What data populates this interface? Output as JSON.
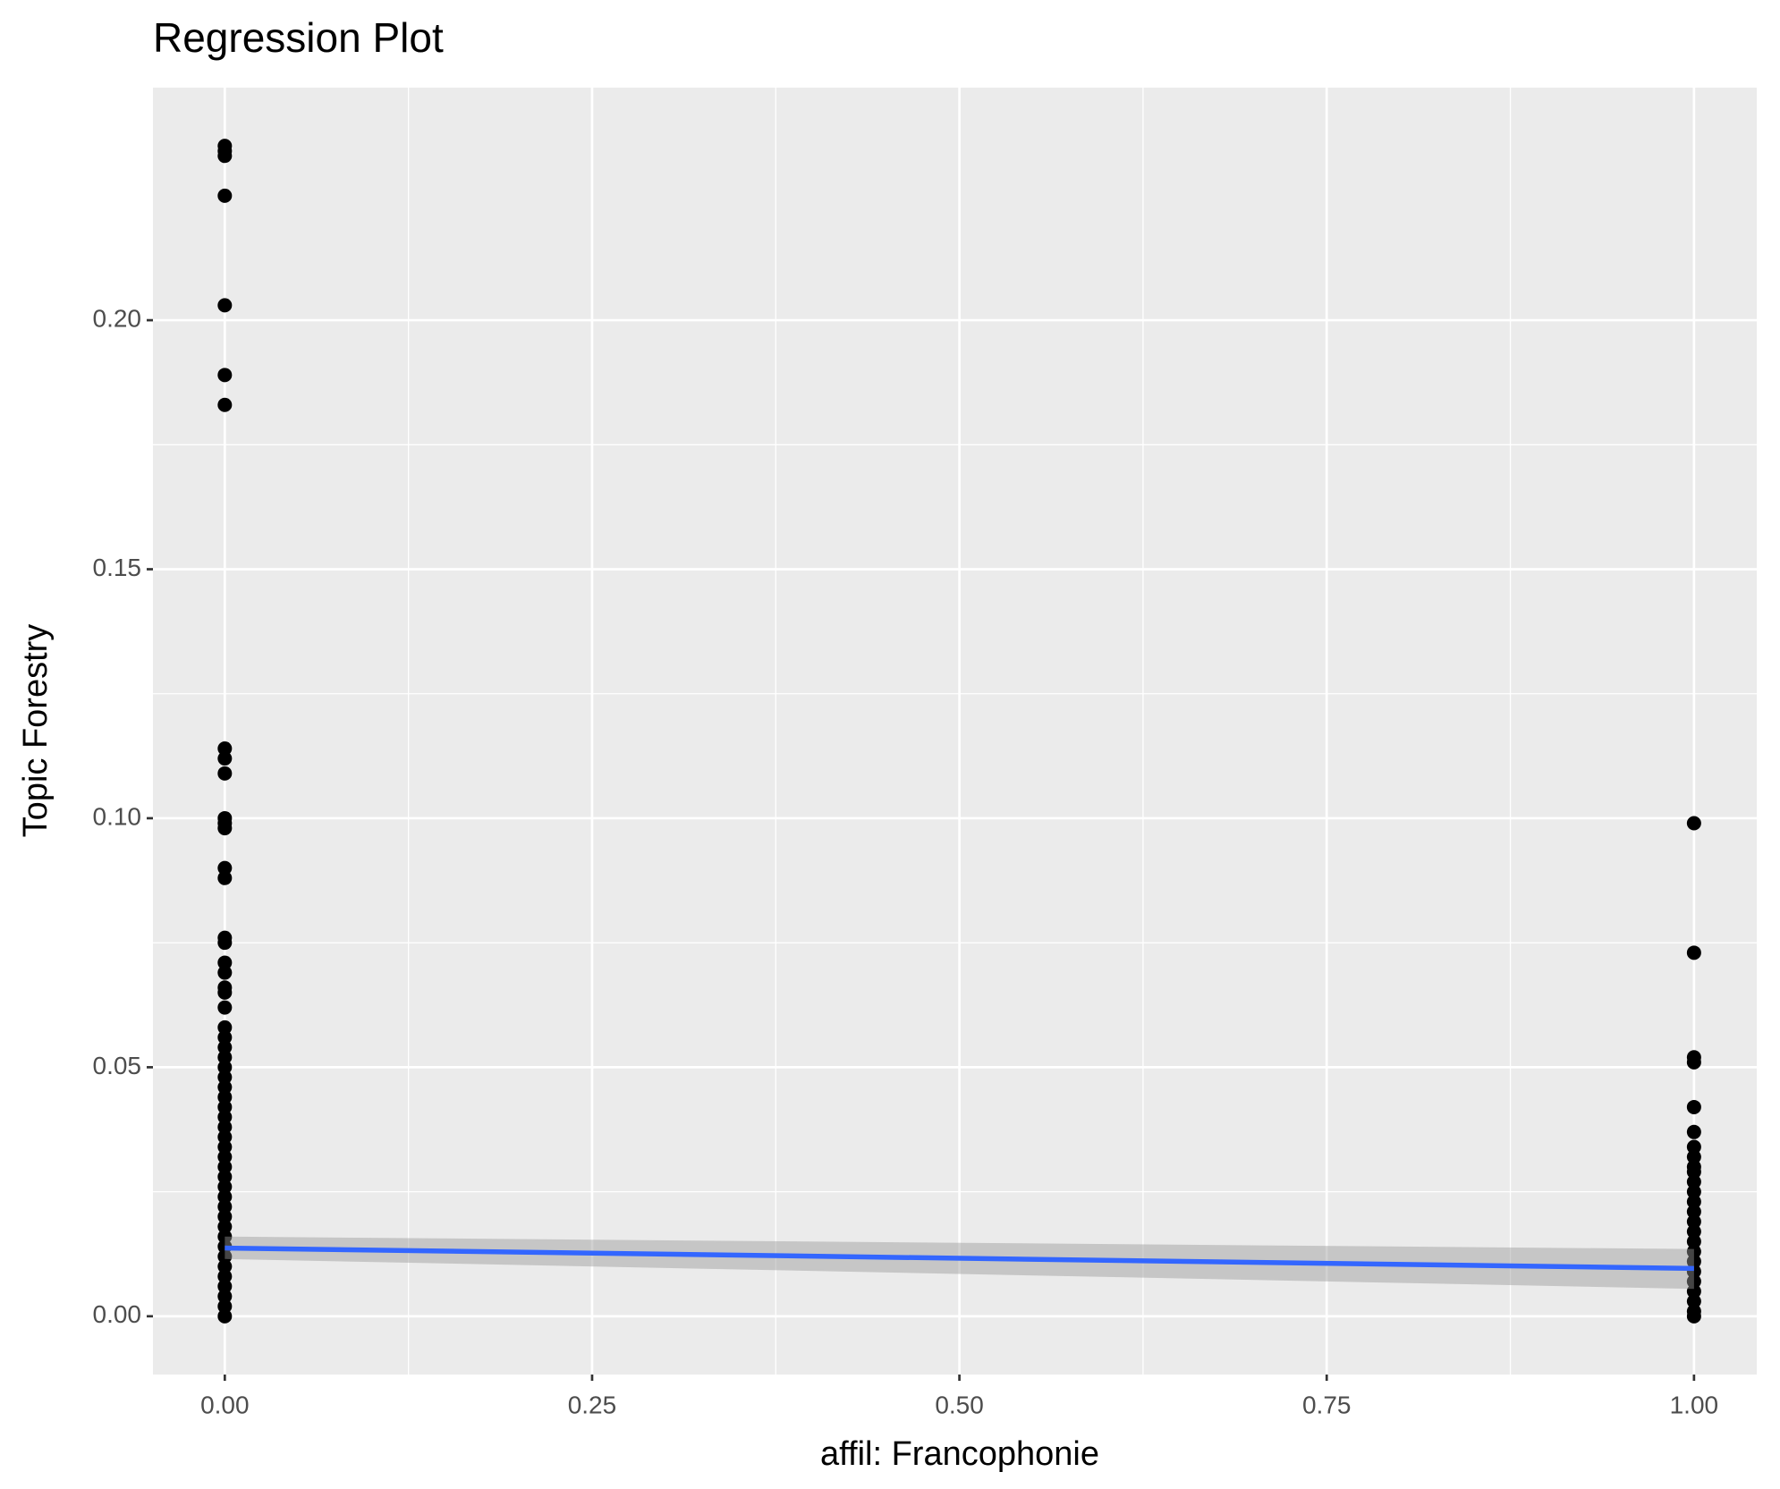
{
  "chart_data": {
    "type": "scatter",
    "title": "Regression Plot",
    "x_label": "affil: Francophonie",
    "y_label": "Topic Forestry",
    "x": [
      0,
      0,
      0,
      0,
      0,
      0,
      0,
      0,
      0,
      0,
      0,
      0,
      0,
      0,
      0,
      0,
      0,
      0,
      0,
      0,
      0,
      0,
      0,
      0,
      0,
      0,
      0,
      0,
      0,
      0,
      0,
      0,
      0,
      0,
      0,
      0,
      0,
      0,
      0,
      0,
      0,
      0,
      0,
      0,
      0,
      0,
      0,
      0,
      0,
      0,
      0,
      0,
      1,
      1,
      1,
      1,
      1,
      1,
      1,
      1,
      1,
      1,
      1,
      1,
      1,
      1,
      1,
      1,
      1,
      1,
      1,
      1,
      1,
      1,
      1,
      1,
      1
    ],
    "y": [
      0.235,
      0.234,
      0.233,
      0.225,
      0.203,
      0.189,
      0.183,
      0.114,
      0.112,
      0.109,
      0.1,
      0.099,
      0.098,
      0.09,
      0.088,
      0.076,
      0.075,
      0.071,
      0.069,
      0.066,
      0.065,
      0.062,
      0.058,
      0.056,
      0.054,
      0.052,
      0.05,
      0.048,
      0.046,
      0.044,
      0.042,
      0.04,
      0.038,
      0.036,
      0.034,
      0.032,
      0.03,
      0.028,
      0.026,
      0.024,
      0.022,
      0.02,
      0.018,
      0.016,
      0.014,
      0.012,
      0.01,
      0.008,
      0.006,
      0.004,
      0.002,
      0,
      0.099,
      0.073,
      0.052,
      0.051,
      0.042,
      0.037,
      0.034,
      0.032,
      0.03,
      0.029,
      0.027,
      0.025,
      0.023,
      0.021,
      0.019,
      0.017,
      0.015,
      0.013,
      0.011,
      0.009,
      0.007,
      0.005,
      0.003,
      0.001,
      0
    ],
    "color": "#000000",
    "fit": {
      "x": [
        0,
        1
      ],
      "y": [
        0.0137,
        0.0096
      ],
      "lower": [
        0.0115,
        0.0055
      ],
      "upper": [
        0.016,
        0.0135
      ],
      "color": "#3366FF",
      "band_color": "#999999"
    },
    "xlim": [
      -0.0489,
      1.0427
    ],
    "ylim": [
      -0.0117,
      0.2467
    ],
    "xticks": [
      {
        "value": 0,
        "label": "0.00"
      },
      {
        "value": 0.25,
        "label": "0.25"
      },
      {
        "value": 0.5,
        "label": "0.50"
      },
      {
        "value": 0.75,
        "label": "0.75"
      },
      {
        "value": 1,
        "label": "1.00"
      }
    ],
    "yticks": [
      {
        "value": 0,
        "label": "0.00"
      },
      {
        "value": 0.05,
        "label": "0.05"
      },
      {
        "value": 0.1,
        "label": "0.10"
      },
      {
        "value": 0.15,
        "label": "0.15"
      },
      {
        "value": 0.2,
        "label": "0.20"
      }
    ],
    "grid": true
  }
}
